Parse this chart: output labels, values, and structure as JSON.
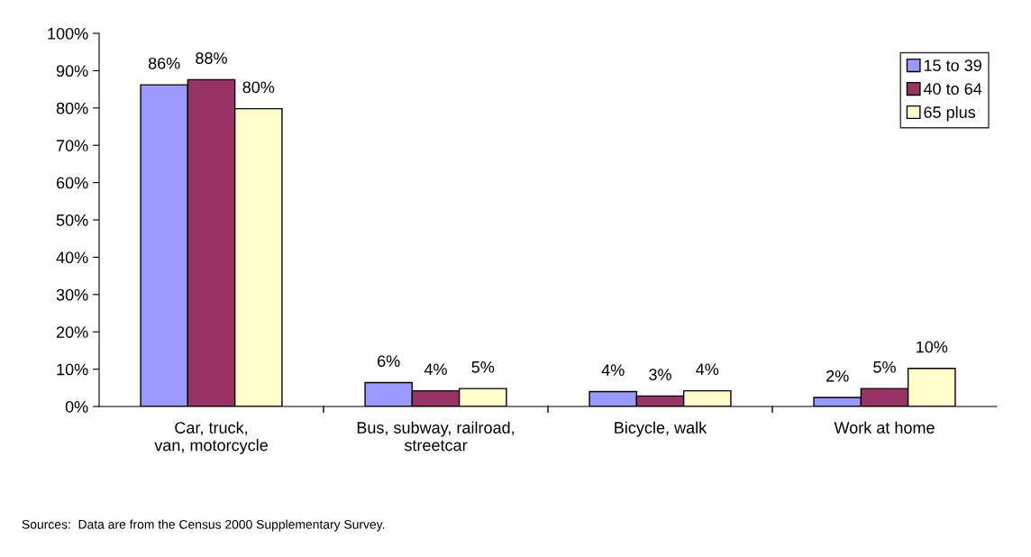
{
  "chart_data": {
    "type": "bar",
    "categories": [
      "Car, truck,\nvan, motorcycle",
      "Bus, subway, railroad,\nstreetcar",
      "Bicycle, walk",
      "Work at home"
    ],
    "series": [
      {
        "name": "15 to 39",
        "color": "#9999ff",
        "values": [
          86.2,
          6.4,
          4.0,
          2.4
        ],
        "value_labels": [
          "86%",
          "6%",
          "4%",
          "2%"
        ]
      },
      {
        "name": "40 to 64",
        "color": "#993366",
        "values": [
          87.6,
          4.2,
          2.8,
          4.8
        ],
        "value_labels": [
          "88%",
          "4%",
          "3%",
          "5%"
        ]
      },
      {
        "name": "65 plus",
        "color": "#ffffcc",
        "values": [
          79.8,
          4.8,
          4.2,
          10.2
        ],
        "value_labels": [
          "80%",
          "5%",
          "4%",
          "10%"
        ]
      }
    ],
    "ylim": [
      0,
      100
    ],
    "yticks": [
      {
        "value": 0,
        "label": "0%"
      },
      {
        "value": 10,
        "label": "10%"
      },
      {
        "value": 20,
        "label": "20%"
      },
      {
        "value": 30,
        "label": "30%"
      },
      {
        "value": 40,
        "label": "40%"
      },
      {
        "value": 50,
        "label": "50%"
      },
      {
        "value": 60,
        "label": "60%"
      },
      {
        "value": 70,
        "label": "70%"
      },
      {
        "value": 80,
        "label": "80%"
      },
      {
        "value": 90,
        "label": "90%"
      },
      {
        "value": 100,
        "label": "100%"
      }
    ],
    "legend": "top right",
    "grid": false,
    "annotations": [
      "Sources:  Data are from the Census 2000 Supplementary Survey."
    ]
  }
}
